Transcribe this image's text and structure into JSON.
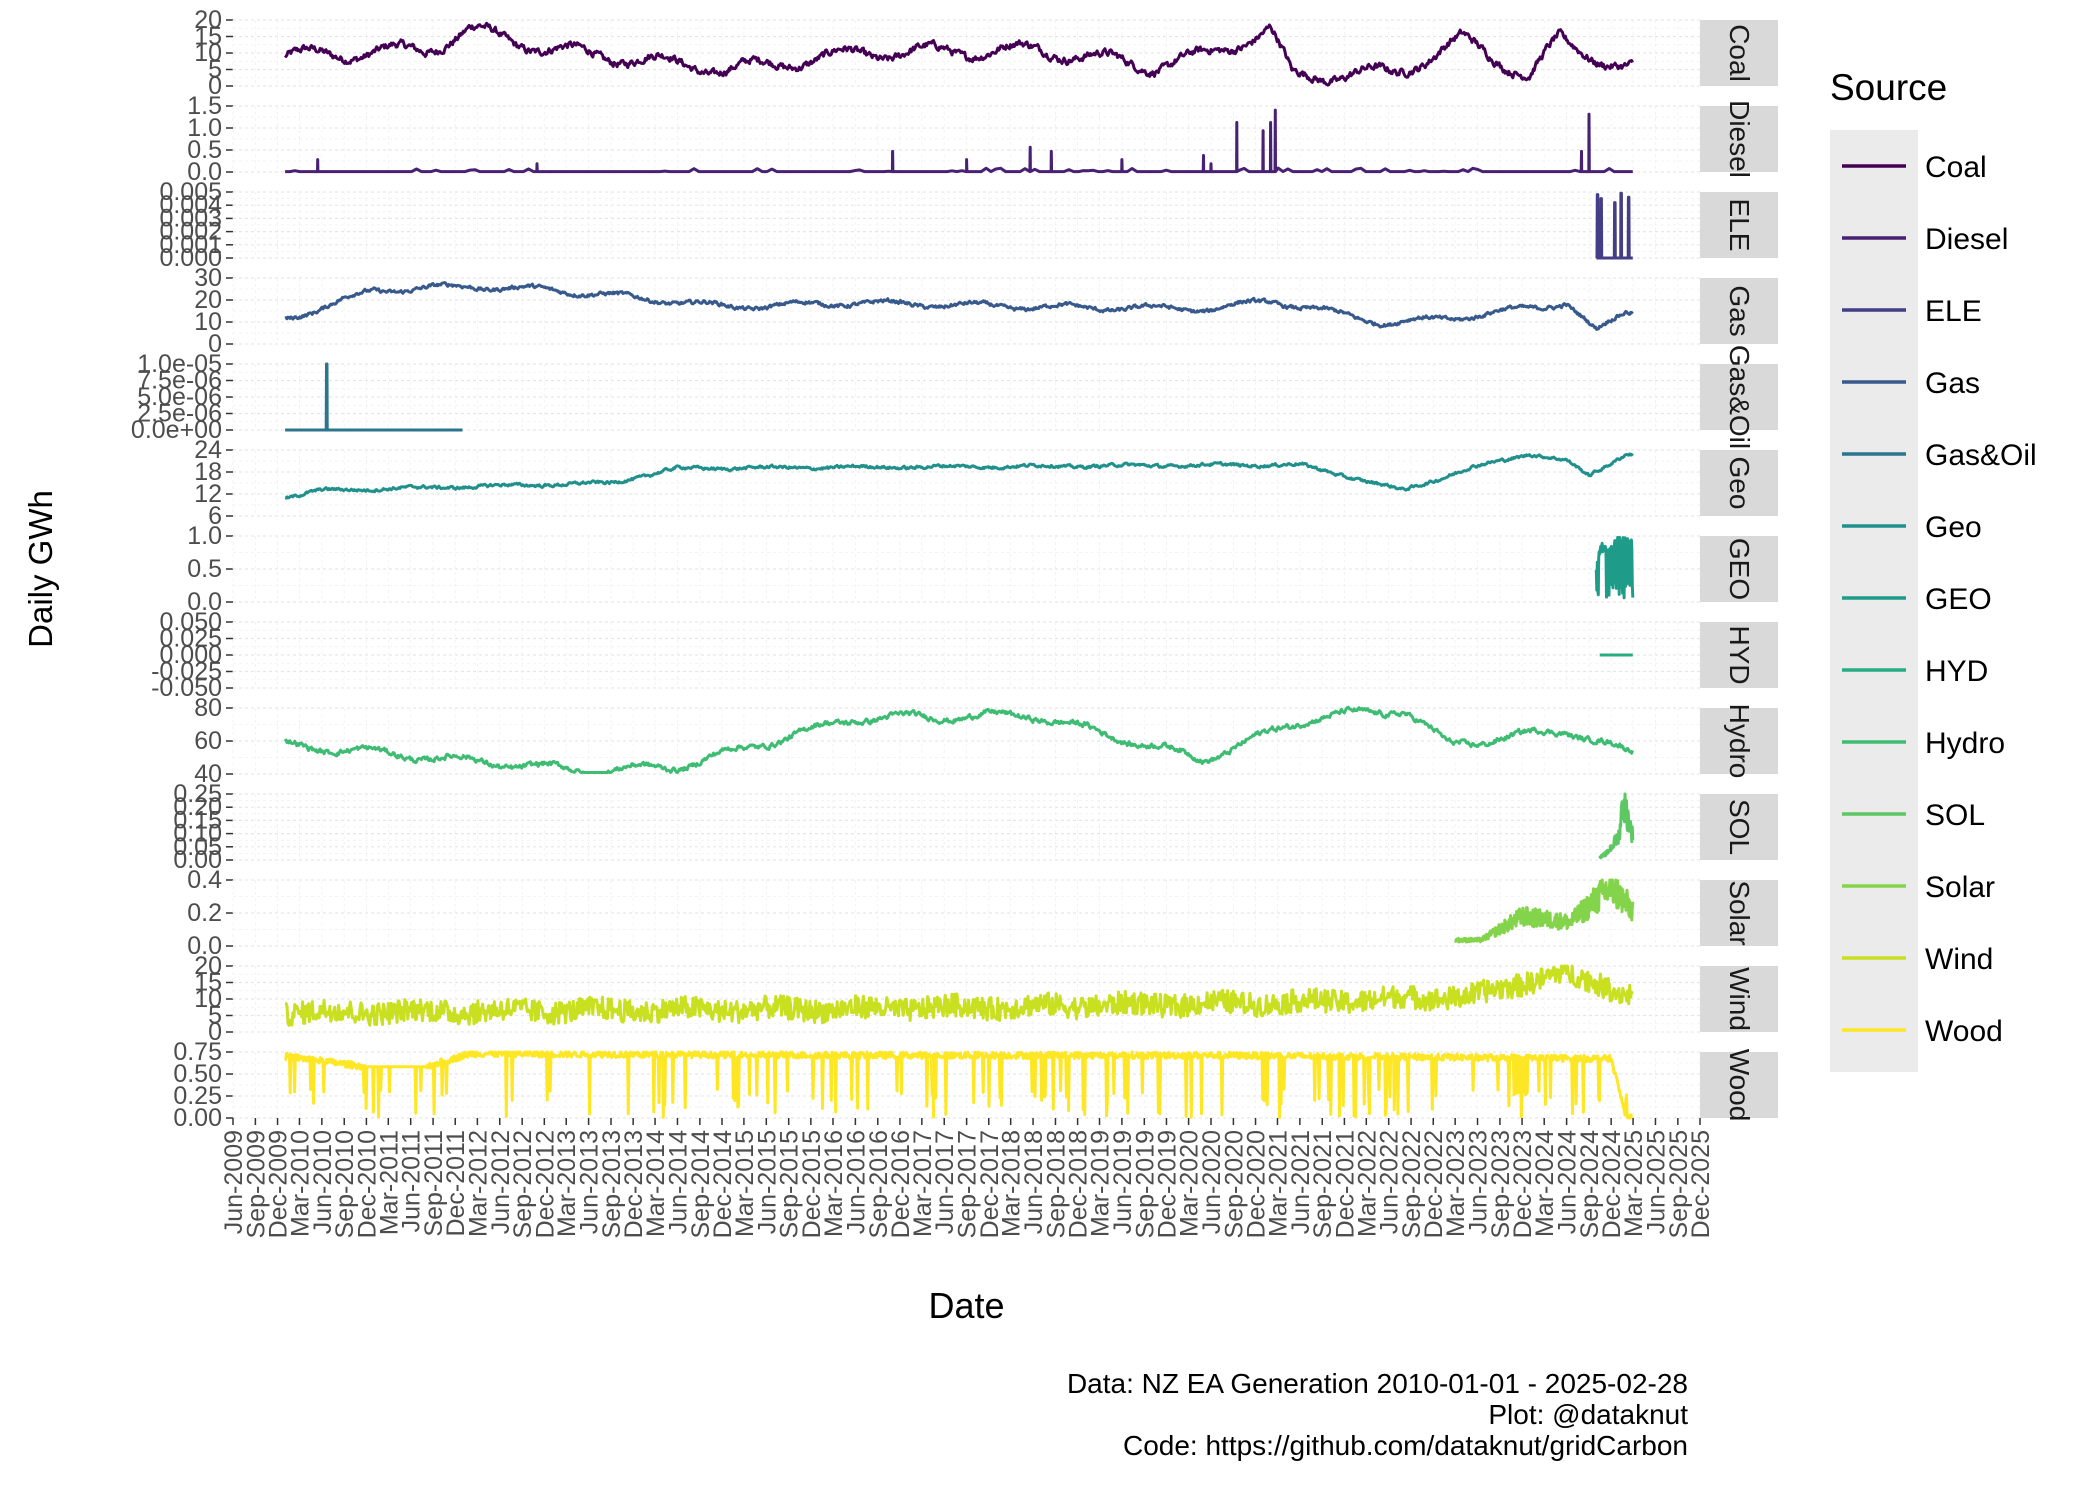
{
  "chart_data": {
    "type": "line",
    "layout": "faceted, one panel per source, free y scales",
    "xlabel": "Date",
    "ylabel": "Daily GWh",
    "legend_title": "Source",
    "legend_position": "right",
    "grid": true,
    "x_tick_labels": [
      "Jun-2009",
      "Sep-2009",
      "Dec-2009",
      "Mar-2010",
      "Jun-2010",
      "Sep-2010",
      "Dec-2010",
      "Mar-2011",
      "Jun-2011",
      "Sep-2011",
      "Dec-2011",
      "Mar-2012",
      "Jun-2012",
      "Sep-2012",
      "Dec-2012",
      "Mar-2013",
      "Jun-2013",
      "Sep-2013",
      "Dec-2013",
      "Mar-2014",
      "Jun-2014",
      "Sep-2014",
      "Dec-2014",
      "Mar-2015",
      "Jun-2015",
      "Sep-2015",
      "Dec-2015",
      "Mar-2016",
      "Jun-2016",
      "Sep-2016",
      "Dec-2016",
      "Mar-2017",
      "Jun-2017",
      "Sep-2017",
      "Dec-2017",
      "Mar-2018",
      "Jun-2018",
      "Sep-2018",
      "Dec-2018",
      "Mar-2019",
      "Jun-2019",
      "Sep-2019",
      "Dec-2019",
      "Mar-2020",
      "Jun-2020",
      "Sep-2020",
      "Dec-2020",
      "Mar-2021",
      "Jun-2021",
      "Sep-2021",
      "Dec-2021",
      "Mar-2022",
      "Jun-2022",
      "Sep-2022",
      "Dec-2022",
      "Mar-2023",
      "Jun-2023",
      "Sep-2023",
      "Dec-2023",
      "Mar-2024",
      "Jun-2024",
      "Sep-2024",
      "Dec-2024",
      "Mar-2025",
      "Jun-2025",
      "Sep-2025",
      "Dec-2025"
    ],
    "xlim": [
      "2009-06-01",
      "2025-12-01"
    ],
    "caption": [
      "Data: NZ EA Generation 2010-01-01 - 2025-02-28",
      "Plot: @dataknut",
      "Code: https://github.com/dataknut/gridCarbon"
    ],
    "series": [
      {
        "name": "Coal",
        "strip": "Coal",
        "color": "#440154",
        "ylim": [
          0,
          20
        ],
        "yticks": [
          "0",
          "5",
          "10",
          "15",
          "20"
        ],
        "kind": "seasonal",
        "level": 8,
        "amp": 6,
        "noise": 2.2,
        "trend": -1.5,
        "min": 0.2,
        "max": 19.5,
        "start": "2010-01-01",
        "end": "2025-02-28",
        "x": [
          "2010-01",
          "2011-08",
          "2012-02",
          "2013-01",
          "2015-01",
          "2016-07",
          "2018-07",
          "2019-10",
          "2020-05",
          "2021-02",
          "2021-05",
          "2022-07",
          "2023-04",
          "2024-01",
          "2024-05",
          "2025-02"
        ],
        "y": [
          9,
          11,
          17,
          11,
          5,
          10,
          11,
          6,
          9,
          17,
          3,
          4,
          14,
          3,
          14,
          5
        ]
      },
      {
        "name": "Diesel",
        "strip": "Diesel",
        "color": "#482173",
        "ylim": [
          0,
          1.6
        ],
        "yticks": [
          "0.0",
          "0.5",
          "1.0",
          "1.5"
        ],
        "kind": "spikes",
        "base": 0.01,
        "start": "2010-01-01",
        "end": "2025-02-28",
        "x": [
          "2010-05-15",
          "2012-11-01",
          "2016-11-01",
          "2017-09-01",
          "2018-05-20",
          "2018-08-15",
          "2019-06-01",
          "2020-05-01",
          "2020-06-01",
          "2020-09-15",
          "2021-01-01",
          "2021-02-01",
          "2021-02-20",
          "2024-08-01",
          "2024-09-01"
        ],
        "y": [
          0.3,
          0.2,
          0.5,
          0.3,
          0.6,
          0.5,
          0.3,
          0.4,
          0.2,
          1.2,
          1.0,
          1.2,
          1.5,
          0.5,
          1.4
        ]
      },
      {
        "name": "ELE",
        "strip": "ELE",
        "color": "#433E85",
        "ylim": [
          0,
          0.005
        ],
        "yticks": [
          "0.000",
          "0.001",
          "0.002",
          "0.003",
          "0.004",
          "0.005"
        ],
        "kind": "flat",
        "start": "2024-10-01",
        "end": "2025-02-28",
        "x": [
          "2024-10-05",
          "2024-10-20",
          "2024-12-15",
          "2025-01-10",
          "2025-02-10"
        ],
        "y": [
          0.0048,
          0.0045,
          0.0042,
          0.0049,
          0.0046
        ]
      },
      {
        "name": "Gas",
        "strip": "Gas",
        "color": "#38598C",
        "ylim": [
          0,
          32
        ],
        "yticks": [
          "0",
          "10",
          "20",
          "30"
        ],
        "kind": "seasonal",
        "level": 20,
        "amp": 4,
        "noise": 1.8,
        "trend": -4,
        "min": 1,
        "max": 31.5,
        "start": "2010-01-01",
        "end": "2025-02-28",
        "x": [
          "2010-01",
          "2011-01",
          "2012-02",
          "2013-02",
          "2015-01",
          "2016-06",
          "2018-06",
          "2020-06",
          "2021-02",
          "2022-06",
          "2023-06",
          "2024-06",
          "2024-10",
          "2025-02"
        ],
        "y": [
          12,
          26,
          28,
          26,
          18,
          20,
          18,
          17,
          21,
          10,
          14,
          20,
          6,
          16
        ]
      },
      {
        "name": "Gas&Oil",
        "strip": "Gas&Oil",
        "color": "#2B758E",
        "ylim": [
          0,
          1e-05
        ],
        "yticks": [
          "0.0e+00",
          "2.5e-06",
          "5.0e-06",
          "7.5e-06",
          "1.0e-05"
        ],
        "kind": "flat",
        "start": "2010-01-01",
        "end": "2011-12-31",
        "x": [
          "2010-06-20"
        ],
        "y": [
          1e-05
        ]
      },
      {
        "name": "Geo",
        "strip": "Geo",
        "color": "#21908C",
        "ylim": [
          6,
          24
        ],
        "yticks": [
          "6",
          "12",
          "18",
          "24"
        ],
        "kind": "trend",
        "level": 13,
        "amp": 0.8,
        "noise": 0.8,
        "trend": 8,
        "min": 7,
        "max": 25,
        "start": "2010-01-01",
        "end": "2025-02-28",
        "x": [
          "2010-01",
          "2010-06",
          "2013-09",
          "2014-06",
          "2021-06",
          "2022-08",
          "2023-05",
          "2024-01",
          "2024-06",
          "2024-09",
          "2025-02"
        ],
        "y": [
          11,
          13,
          15,
          19,
          20,
          13,
          19,
          23,
          21,
          17,
          23
        ]
      },
      {
        "name": "GEO",
        "strip": "GEO",
        "color": "#1E9C89",
        "ylim": [
          0,
          1.1
        ],
        "yticks": [
          "0.0",
          "0.5",
          "1.0"
        ],
        "kind": "band",
        "start": "2024-10-01",
        "end": "2025-02-28",
        "x": [
          "2024-10-01",
          "2024-10-20",
          "2024-11-15",
          "2025-01-01",
          "2025-02-28"
        ],
        "y": [
          0.6,
          1.0,
          0.9,
          1.1,
          1.05
        ]
      },
      {
        "name": "HYD",
        "strip": "HYD",
        "color": "#27AD81",
        "ylim": [
          -0.05,
          0.05
        ],
        "yticks": [
          "-0.050",
          "-0.025",
          "0.000",
          "0.025",
          "0.050"
        ],
        "kind": "flat",
        "start": "2024-10-15",
        "end": "2025-02-28",
        "x": [],
        "y": []
      },
      {
        "name": "Hydro",
        "strip": "Hydro",
        "color": "#3FBC73",
        "ylim": [
          40,
          85
        ],
        "yticks": [
          "40",
          "60",
          "80"
        ],
        "kind": "seasonal",
        "level": 62,
        "amp": 8,
        "noise": 3.5,
        "trend": 0,
        "min": 41,
        "max": 86,
        "start": "2010-01-01",
        "end": "2025-02-28",
        "x": [
          "2010-01",
          "2013-06",
          "2014-06",
          "2016-06",
          "2018-06",
          "2020-05",
          "2021-07",
          "2022-08",
          "2023-02",
          "2024-06",
          "2025-02"
        ],
        "y": [
          60,
          42,
          45,
          78,
          80,
          50,
          78,
          84,
          60,
          70,
          55
        ]
      },
      {
        "name": "SOL",
        "strip": "SOL",
        "color": "#5DC863",
        "ylim": [
          0,
          0.25
        ],
        "yticks": [
          "0.00",
          "0.05",
          "0.10",
          "0.15",
          "0.20",
          "0.25"
        ],
        "kind": "ramp",
        "start": "2024-10-15",
        "end": "2025-02-28",
        "x": [
          "2024-10-15",
          "2024-11-15",
          "2025-01-01",
          "2025-01-20",
          "2025-02-28"
        ],
        "y": [
          0.01,
          0.03,
          0.1,
          0.25,
          0.1
        ]
      },
      {
        "name": "Solar",
        "strip": "Solar",
        "color": "#84D44B",
        "ylim": [
          0,
          0.5
        ],
        "yticks": [
          "0.0",
          "0.2",
          "0.4"
        ],
        "kind": "ramp",
        "start": "2023-03-01",
        "end": "2025-02-28",
        "x": [
          "2023-03-01",
          "2023-06-15",
          "2023-12-01",
          "2024-06-15",
          "2024-12-01",
          "2025-02-28"
        ],
        "y": [
          0.05,
          0.05,
          0.25,
          0.2,
          0.5,
          0.3
        ]
      },
      {
        "name": "Wind",
        "strip": "Wind",
        "color": "#C8E020",
        "ylim": [
          0,
          20
        ],
        "yticks": [
          "0",
          "5",
          "10",
          "15",
          "20"
        ],
        "kind": "noisy",
        "level": 6,
        "amp": 2,
        "noise": 3.5,
        "trend": 5,
        "min": 0.3,
        "max": 20,
        "start": "2010-01-01",
        "end": "2025-02-28",
        "x": [
          "2010-01",
          "2016-06",
          "2021-06",
          "2023-06",
          "2024-05",
          "2025-02"
        ],
        "y": [
          6,
          7,
          9,
          11,
          18,
          12
        ]
      },
      {
        "name": "Wood",
        "strip": "Wood",
        "color": "#FDE725",
        "ylim": [
          0,
          0.8
        ],
        "yticks": [
          "0.00",
          "0.25",
          "0.50",
          "0.75"
        ],
        "kind": "wood",
        "level": 0.74,
        "noise": 0.04,
        "start": "2010-01-01",
        "end": "2025-02-28",
        "x": [
          "2010-01",
          "2010-12",
          "2011-08",
          "2012-02",
          "2016-06",
          "2020-06",
          "2024-12",
          "2025-02"
        ],
        "y": [
          0.75,
          0.62,
          0.62,
          0.78,
          0.76,
          0.76,
          0.72,
          0.0
        ]
      }
    ]
  }
}
